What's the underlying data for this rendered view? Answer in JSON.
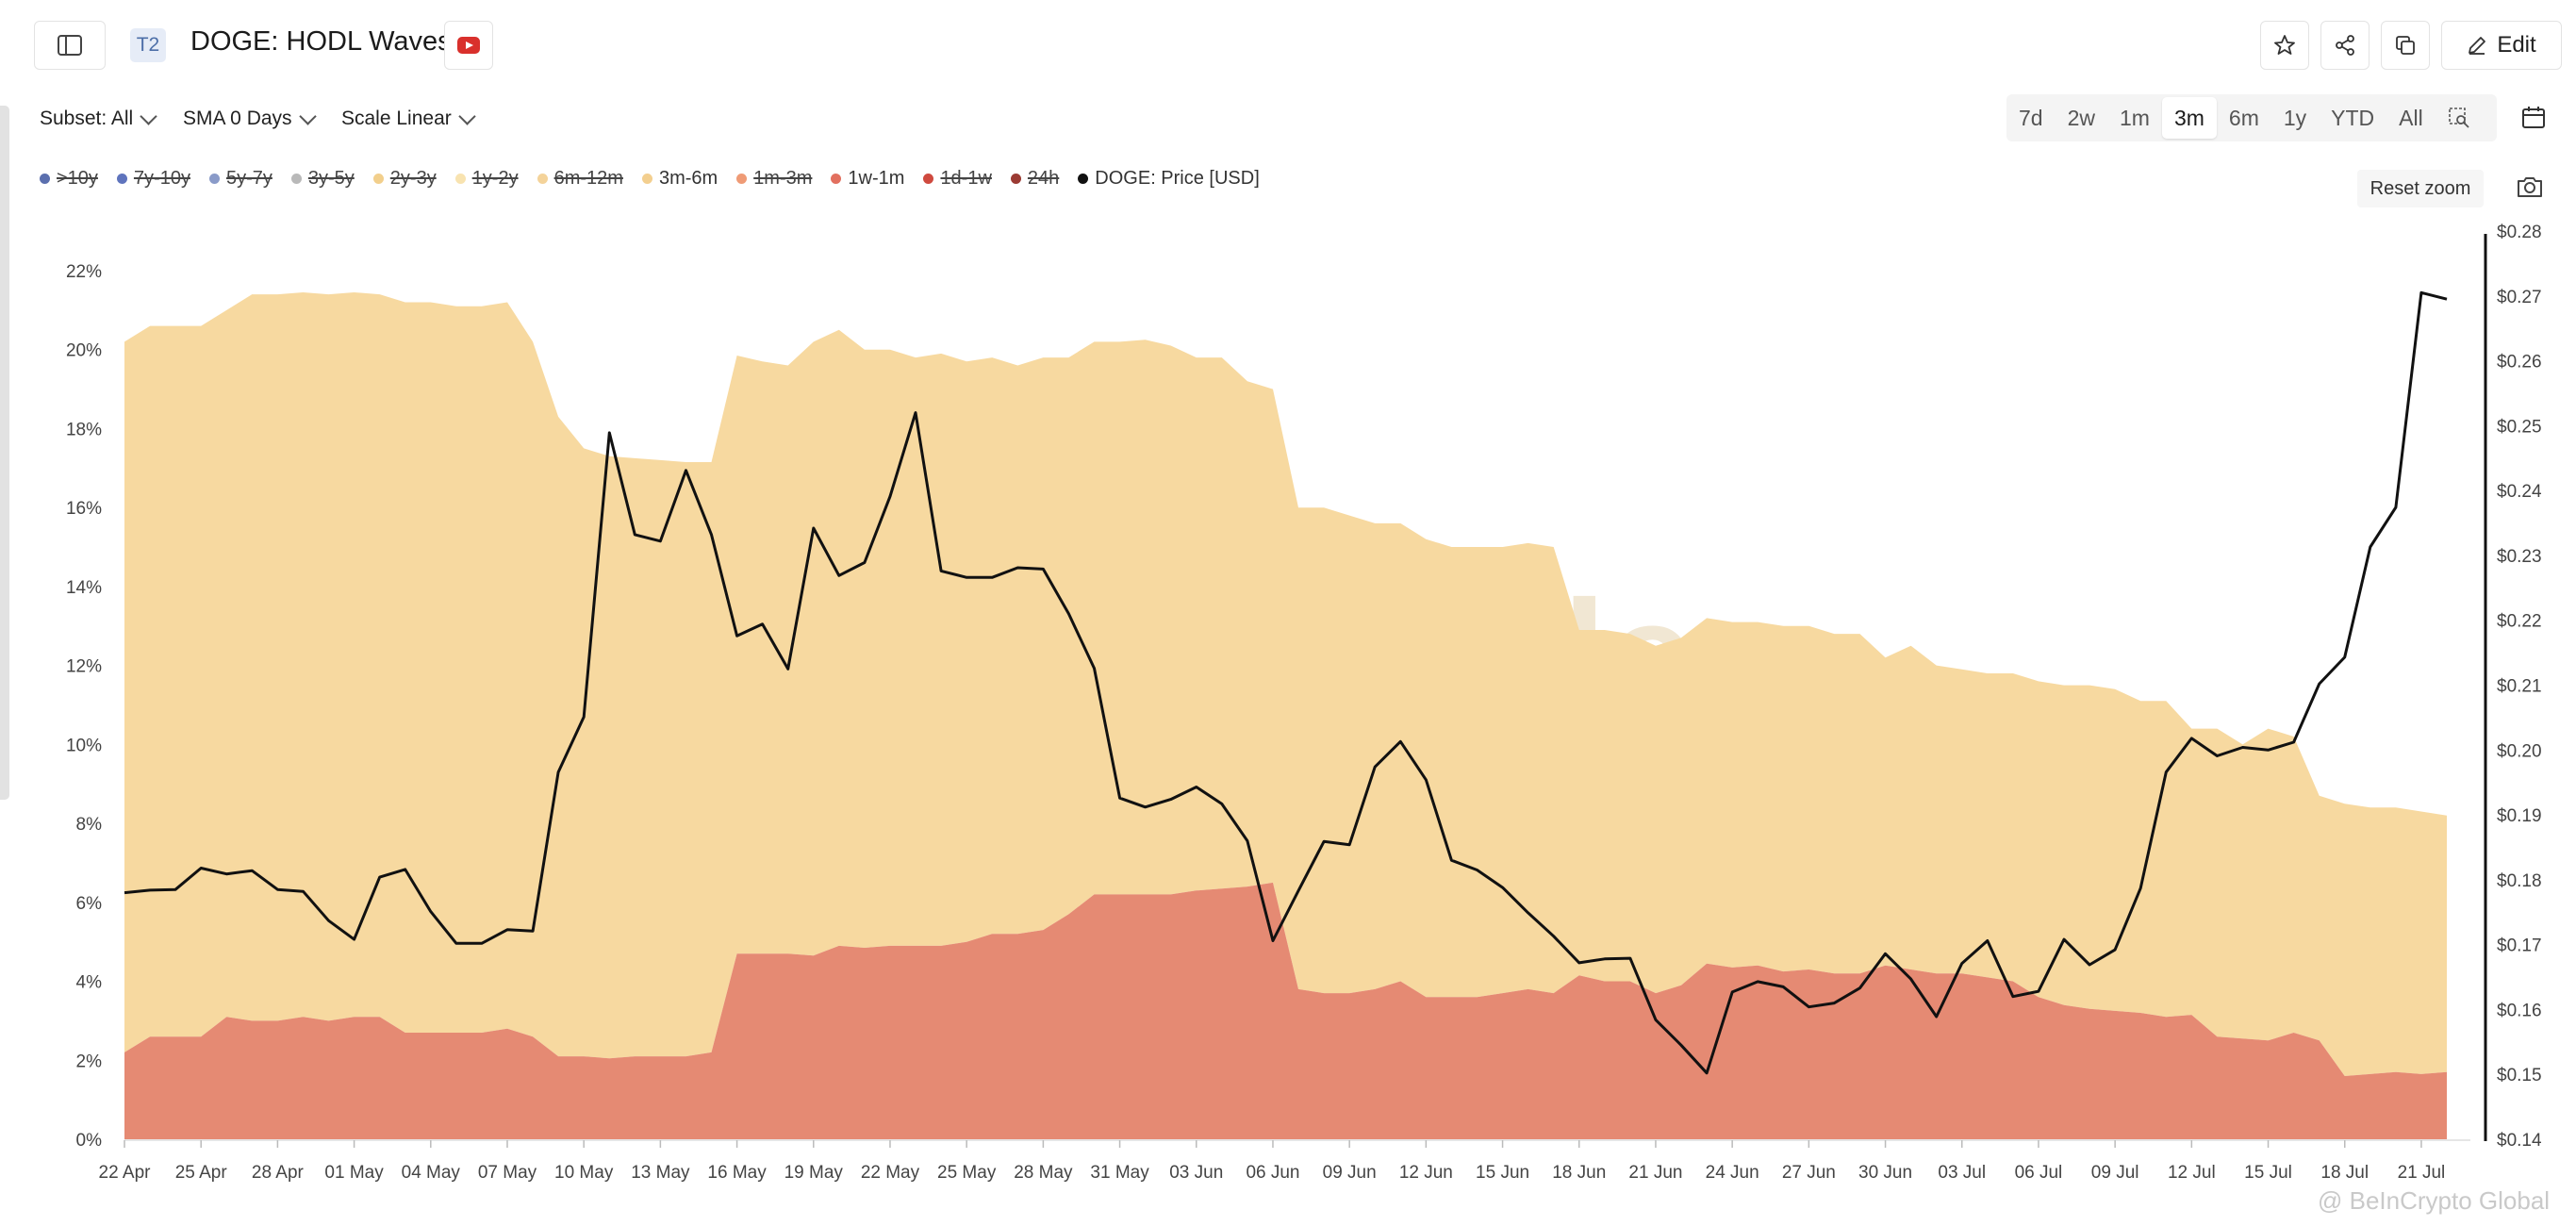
{
  "header": {
    "tag": "T2",
    "title": "DOGE: HODL Waves",
    "edit_label": "Edit"
  },
  "controls": {
    "subset": "Subset: All",
    "sma": "SMA 0 Days",
    "scale": "Scale Linear",
    "ranges": [
      "7d",
      "2w",
      "1m",
      "3m",
      "6m",
      "1y",
      "YTD",
      "All"
    ],
    "active_range": "3m",
    "reset_zoom": "Reset zoom"
  },
  "legend": [
    {
      "label": ">10y",
      "color": "#5b6fae",
      "enabled": false
    },
    {
      "label": "7y-10y",
      "color": "#5f74bd",
      "enabled": false
    },
    {
      "label": "5y-7y",
      "color": "#8a9bc9",
      "enabled": false
    },
    {
      "label": "3y-5y",
      "color": "#b9b9b9",
      "enabled": false
    },
    {
      "label": "2y-3y",
      "color": "#f2cf8c",
      "enabled": false
    },
    {
      "label": "1y-2y",
      "color": "#f8e3b0",
      "enabled": false
    },
    {
      "label": "6m-12m",
      "color": "#f4d39a",
      "enabled": false
    },
    {
      "label": "3m-6m",
      "color": "#f3cf8f",
      "enabled": true
    },
    {
      "label": "1m-3m",
      "color": "#ef9b76",
      "enabled": false
    },
    {
      "label": "1w-1m",
      "color": "#e2705f",
      "enabled": true
    },
    {
      "label": "1d-1w",
      "color": "#cf4a3f",
      "enabled": false
    },
    {
      "label": "24h",
      "color": "#9b3b33",
      "enabled": false
    },
    {
      "label": "DOGE: Price [USD]",
      "color": "#111111",
      "enabled": true
    }
  ],
  "colors": {
    "band_3m_6m": "#f7d9a0",
    "band_1w_1m": "#e58a73",
    "price_line": "#111111",
    "watermark": "#e9dfcf"
  },
  "watermark": "glassnode",
  "credit": "@ BeInCrypto Global",
  "chart_data": {
    "type": "area",
    "x_ticks": [
      "22 Apr",
      "25 Apr",
      "28 Apr",
      "01 May",
      "04 May",
      "07 May",
      "10 May",
      "13 May",
      "16 May",
      "19 May",
      "22 May",
      "25 May",
      "28 May",
      "31 May",
      "03 Jun",
      "06 Jun",
      "09 Jun",
      "12 Jun",
      "15 Jun",
      "18 Jun",
      "21 Jun",
      "24 Jun",
      "27 Jun",
      "30 Jun",
      "03 Jul",
      "06 Jul",
      "09 Jul",
      "12 Jul",
      "15 Jul",
      "18 Jul",
      "21 Jul"
    ],
    "y_left_ticks": [
      "0%",
      "2%",
      "4%",
      "6%",
      "8%",
      "10%",
      "12%",
      "14%",
      "16%",
      "18%",
      "20%",
      "22%"
    ],
    "y_left_range": [
      0,
      22
    ],
    "y_right_ticks": [
      "$0.14",
      "$0.15",
      "$0.16",
      "$0.17",
      "$0.18",
      "$0.19",
      "$0.20",
      "$0.21",
      "$0.22",
      "$0.23",
      "$0.24",
      "$0.25",
      "$0.26",
      "$0.27",
      "$0.28"
    ],
    "y_right_range": [
      0.14,
      0.28
    ],
    "series": [
      {
        "name": "1w-1m",
        "axis": "left",
        "stack": "bottom",
        "values": [
          2.2,
          2.6,
          2.6,
          2.6,
          3.1,
          3.0,
          3.0,
          3.1,
          3.0,
          3.1,
          3.1,
          2.7,
          2.7,
          2.7,
          2.7,
          2.8,
          2.6,
          2.1,
          2.1,
          2.05,
          2.1,
          2.1,
          2.1,
          2.2,
          4.7,
          4.7,
          4.7,
          4.65,
          4.9,
          4.85,
          4.9,
          4.9,
          4.9,
          5.0,
          5.2,
          5.2,
          5.3,
          5.7,
          6.2,
          6.2,
          6.2,
          6.2,
          6.3,
          6.35,
          6.4,
          6.5,
          3.8,
          3.7,
          3.7,
          3.8,
          4.0,
          3.6,
          3.6,
          3.6,
          3.7,
          3.8,
          3.7,
          4.15,
          4.0,
          4.0,
          3.7,
          3.9,
          4.45,
          4.35,
          4.4,
          4.25,
          4.3,
          4.2,
          4.2,
          4.4,
          4.3,
          4.2,
          4.2,
          4.1,
          4.0,
          3.6,
          3.4,
          3.3,
          3.25,
          3.2,
          3.1,
          3.15,
          2.6,
          2.55,
          2.5,
          2.7,
          2.5,
          1.6,
          1.65,
          1.7,
          1.65,
          1.7
        ]
      },
      {
        "name": "3m-6m",
        "axis": "left",
        "stack": "total",
        "values": [
          20.2,
          20.6,
          20.6,
          20.6,
          21.0,
          21.4,
          21.4,
          21.45,
          21.4,
          21.45,
          21.4,
          21.2,
          21.2,
          21.1,
          21.1,
          21.2,
          20.2,
          18.3,
          17.5,
          17.3,
          17.25,
          17.2,
          17.15,
          17.15,
          19.85,
          19.7,
          19.6,
          20.2,
          20.5,
          20.0,
          20.0,
          19.8,
          19.9,
          19.7,
          19.8,
          19.6,
          19.8,
          19.8,
          20.2,
          20.2,
          20.25,
          20.1,
          19.8,
          19.8,
          19.2,
          19.0,
          16.0,
          16.0,
          15.8,
          15.6,
          15.6,
          15.2,
          15.0,
          15.0,
          15.0,
          15.1,
          15.0,
          12.9,
          12.9,
          12.8,
          12.5,
          12.7,
          13.2,
          13.1,
          13.1,
          13.0,
          13.0,
          12.8,
          12.8,
          12.2,
          12.5,
          12.0,
          11.9,
          11.8,
          11.8,
          11.6,
          11.5,
          11.5,
          11.4,
          11.1,
          11.1,
          10.4,
          10.4,
          10.0,
          10.4,
          10.2,
          8.7,
          8.5,
          8.4,
          8.4,
          8.3,
          8.2
        ]
      },
      {
        "name": "DOGE: Price [USD]",
        "axis": "right",
        "type": "line",
        "values": [
          0.178,
          0.1784,
          0.1785,
          0.1818,
          0.1809,
          0.1814,
          0.1785,
          0.1782,
          0.1737,
          0.1708,
          0.1804,
          0.1816,
          0.1751,
          0.1702,
          0.1702,
          0.1723,
          0.1721,
          0.1966,
          0.2051,
          0.2489,
          0.2332,
          0.2322,
          0.2431,
          0.2332,
          0.2176,
          0.2194,
          0.2125,
          0.2342,
          0.2269,
          0.2289,
          0.2391,
          0.252,
          0.2276,
          0.2266,
          0.2266,
          0.2281,
          0.2279,
          0.221,
          0.2126,
          0.1926,
          0.1912,
          0.1924,
          0.1943,
          0.1917,
          0.186,
          0.1706,
          0.1783,
          0.1859,
          0.1854,
          0.1974,
          0.2013,
          0.1954,
          0.183,
          0.1815,
          0.1788,
          0.1749,
          0.1713,
          0.1672,
          0.1678,
          0.1679,
          0.1584,
          0.1545,
          0.1502,
          0.1627,
          0.1643,
          0.1635,
          0.1604,
          0.161,
          0.1633,
          0.1686,
          0.1647,
          0.1589,
          0.1671,
          0.1706,
          0.162,
          0.1628,
          0.1708,
          0.1669,
          0.1692,
          0.1787,
          0.1966,
          0.2018,
          0.1991,
          0.2004,
          0.2,
          0.2012,
          0.2102,
          0.2143,
          0.2313,
          0.2374,
          0.2705,
          0.2695
        ]
      }
    ],
    "grid": false,
    "legend_position": "top-left"
  }
}
